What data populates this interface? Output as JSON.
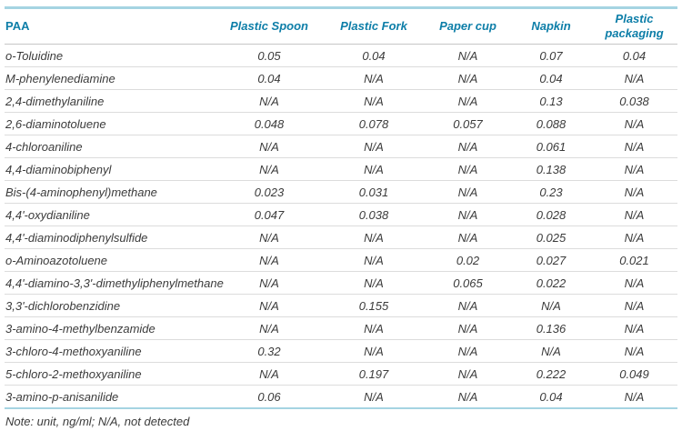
{
  "table": {
    "columns": [
      {
        "label": "PAA"
      },
      {
        "label": "Plastic Spoon"
      },
      {
        "label": "Plastic Fork"
      },
      {
        "label": "Paper cup"
      },
      {
        "label": "Napkin"
      },
      {
        "label": "Plastic packaging"
      }
    ],
    "rows": [
      {
        "name": "o-Toluidine",
        "values": [
          "0.05",
          "0.04",
          "N/A",
          "0.07",
          "0.04"
        ]
      },
      {
        "name": "M-phenylenediamine",
        "values": [
          "0.04",
          "N/A",
          "N/A",
          "0.04",
          "N/A"
        ]
      },
      {
        "name": "2,4-dimethylaniline",
        "values": [
          "N/A",
          "N/A",
          "N/A",
          "0.13",
          "0.038"
        ]
      },
      {
        "name": "2,6-diaminotoluene",
        "values": [
          "0.048",
          "0.078",
          "0.057",
          "0.088",
          "N/A"
        ]
      },
      {
        "name": "4-chloroaniline",
        "values": [
          "N/A",
          "N/A",
          "N/A",
          "0.061",
          "N/A"
        ]
      },
      {
        "name": "4,4-diaminobiphenyl",
        "values": [
          "N/A",
          "N/A",
          "N/A",
          "0.138",
          "N/A"
        ]
      },
      {
        "name": "Bis-(4-aminophenyl)methane",
        "values": [
          "0.023",
          "0.031",
          "N/A",
          "0.23",
          "N/A"
        ]
      },
      {
        "name": "4,4'-oxydianiline",
        "values": [
          "0.047",
          "0.038",
          "N/A",
          "0.028",
          "N/A"
        ]
      },
      {
        "name": "4,4'-diaminodiphenylsulfide",
        "values": [
          "N/A",
          "N/A",
          "N/A",
          "0.025",
          "N/A"
        ]
      },
      {
        "name": "o-Aminoazotoluene",
        "values": [
          "N/A",
          "N/A",
          "0.02",
          "0.027",
          "0.021"
        ]
      },
      {
        "name": "4,4'-diamino-3,3'-dimethyliphenylmethane",
        "values": [
          "N/A",
          "N/A",
          "0.065",
          "0.022",
          "N/A"
        ]
      },
      {
        "name": "3,3'-dichlorobenzidine",
        "values": [
          "N/A",
          "0.155",
          "N/A",
          "N/A",
          "N/A"
        ]
      },
      {
        "name": "3-amino-4-methylbenzamide",
        "values": [
          "N/A",
          "N/A",
          "N/A",
          "0.136",
          "N/A"
        ]
      },
      {
        "name": "3-chloro-4-methoxyaniline",
        "values": [
          "0.32",
          "N/A",
          "N/A",
          "N/A",
          "N/A"
        ]
      },
      {
        "name": "5-chloro-2-methoxyaniline",
        "values": [
          "N/A",
          "0.197",
          "N/A",
          "0.222",
          "0.049"
        ]
      },
      {
        "name": "3-amino-p-anisanilide",
        "values": [
          "0.06",
          "N/A",
          "N/A",
          "0.04",
          "N/A"
        ]
      }
    ],
    "note": "Note: unit, ng/ml; N/A, not detected"
  },
  "colors": {
    "header_text": "#0d7ea8",
    "accent_rule": "#a5d4e2",
    "row_divider": "#dcdcdc",
    "body_text": "#3b3b3b"
  }
}
